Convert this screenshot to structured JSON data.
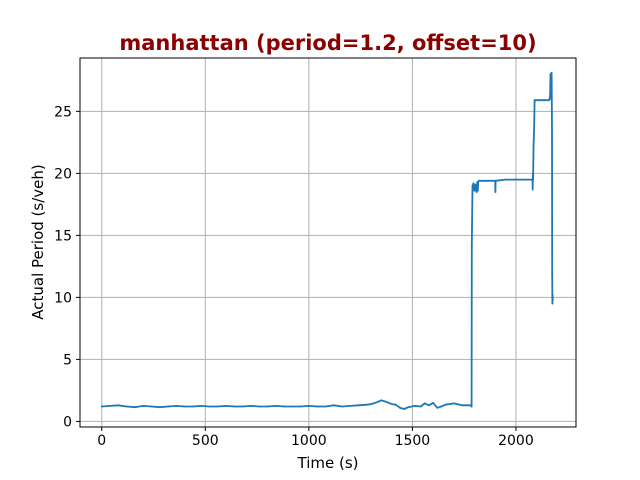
{
  "chart_data": {
    "type": "line",
    "title": "manhattan (period=1.2, offset=10)",
    "title_color": "#8b0000",
    "xlabel": "Time (s)",
    "ylabel": "Actual Period (s/veh)",
    "xlim": [
      -105,
      2290
    ],
    "ylim": [
      -0.45,
      29.3
    ],
    "x_ticks": [
      0,
      500,
      1000,
      1500,
      2000
    ],
    "y_ticks": [
      0,
      5,
      10,
      15,
      20,
      25
    ],
    "x_tick_labels": [
      "0",
      "500",
      "1000",
      "1500",
      "2000"
    ],
    "y_tick_labels": [
      "0",
      "5",
      "10",
      "15",
      "20",
      "25"
    ],
    "grid": true,
    "legend": "none",
    "series_color": "#1f77b4",
    "series": [
      {
        "x": [
          0,
          40,
          80,
          120,
          160,
          200,
          240,
          280,
          320,
          360,
          400,
          440,
          480,
          520,
          560,
          600,
          640,
          680,
          720,
          760,
          800,
          840,
          880,
          920,
          960,
          1000,
          1040,
          1080,
          1120,
          1160,
          1200,
          1240,
          1280,
          1300,
          1330,
          1350,
          1370,
          1400,
          1420,
          1440,
          1460,
          1480,
          1510,
          1540,
          1560,
          1580,
          1600,
          1620,
          1640,
          1660,
          1700,
          1740,
          1780,
          1786,
          1787,
          1790,
          1795,
          1800,
          1805,
          1810,
          1812,
          1814,
          1816,
          1818,
          1820,
          1830,
          1850,
          1900,
          1901,
          1902,
          1950,
          2000,
          2050,
          2080,
          2081,
          2082,
          2083,
          2085,
          2088,
          2090,
          2095,
          2100,
          2120,
          2140,
          2160,
          2165,
          2167,
          2170,
          2172,
          2174,
          2175,
          2176,
          2177,
          2178
        ],
        "y": [
          1.2,
          1.25,
          1.3,
          1.2,
          1.15,
          1.25,
          1.2,
          1.15,
          1.2,
          1.25,
          1.2,
          1.2,
          1.25,
          1.2,
          1.2,
          1.25,
          1.2,
          1.2,
          1.25,
          1.2,
          1.2,
          1.25,
          1.2,
          1.2,
          1.2,
          1.25,
          1.2,
          1.2,
          1.3,
          1.2,
          1.25,
          1.3,
          1.35,
          1.4,
          1.55,
          1.7,
          1.6,
          1.4,
          1.35,
          1.1,
          1.0,
          1.15,
          1.25,
          1.2,
          1.45,
          1.3,
          1.5,
          1.1,
          1.2,
          1.35,
          1.45,
          1.3,
          1.3,
          1.2,
          14.2,
          19.0,
          19.2,
          18.6,
          19.1,
          18.5,
          19.0,
          19.3,
          18.6,
          19.3,
          19.4,
          19.4,
          19.4,
          19.4,
          18.5,
          19.4,
          19.5,
          19.5,
          19.5,
          19.5,
          18.7,
          20.0,
          19.5,
          22.0,
          24.0,
          25.9,
          25.9,
          25.9,
          25.9,
          25.9,
          25.9,
          26.2,
          28.0,
          26.0,
          28.1,
          23.5,
          12.0,
          9.5,
          10.2,
          9.8
        ]
      }
    ]
  }
}
